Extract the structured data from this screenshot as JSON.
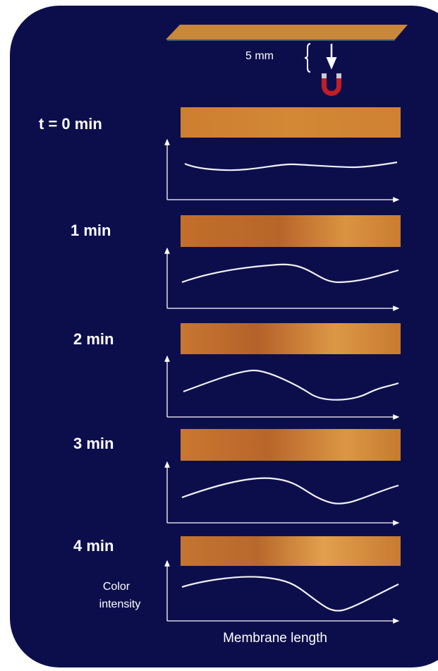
{
  "header": {
    "scale_label": "5 mm"
  },
  "panels": [
    {
      "label": "t = 0 min"
    },
    {
      "label": "1 min"
    },
    {
      "label": "2 min"
    },
    {
      "label": "3 min"
    },
    {
      "label": "4 min"
    }
  ],
  "axes": {
    "y_label": [
      "Color",
      "intensity"
    ],
    "x_label": "Membrane length"
  }
}
